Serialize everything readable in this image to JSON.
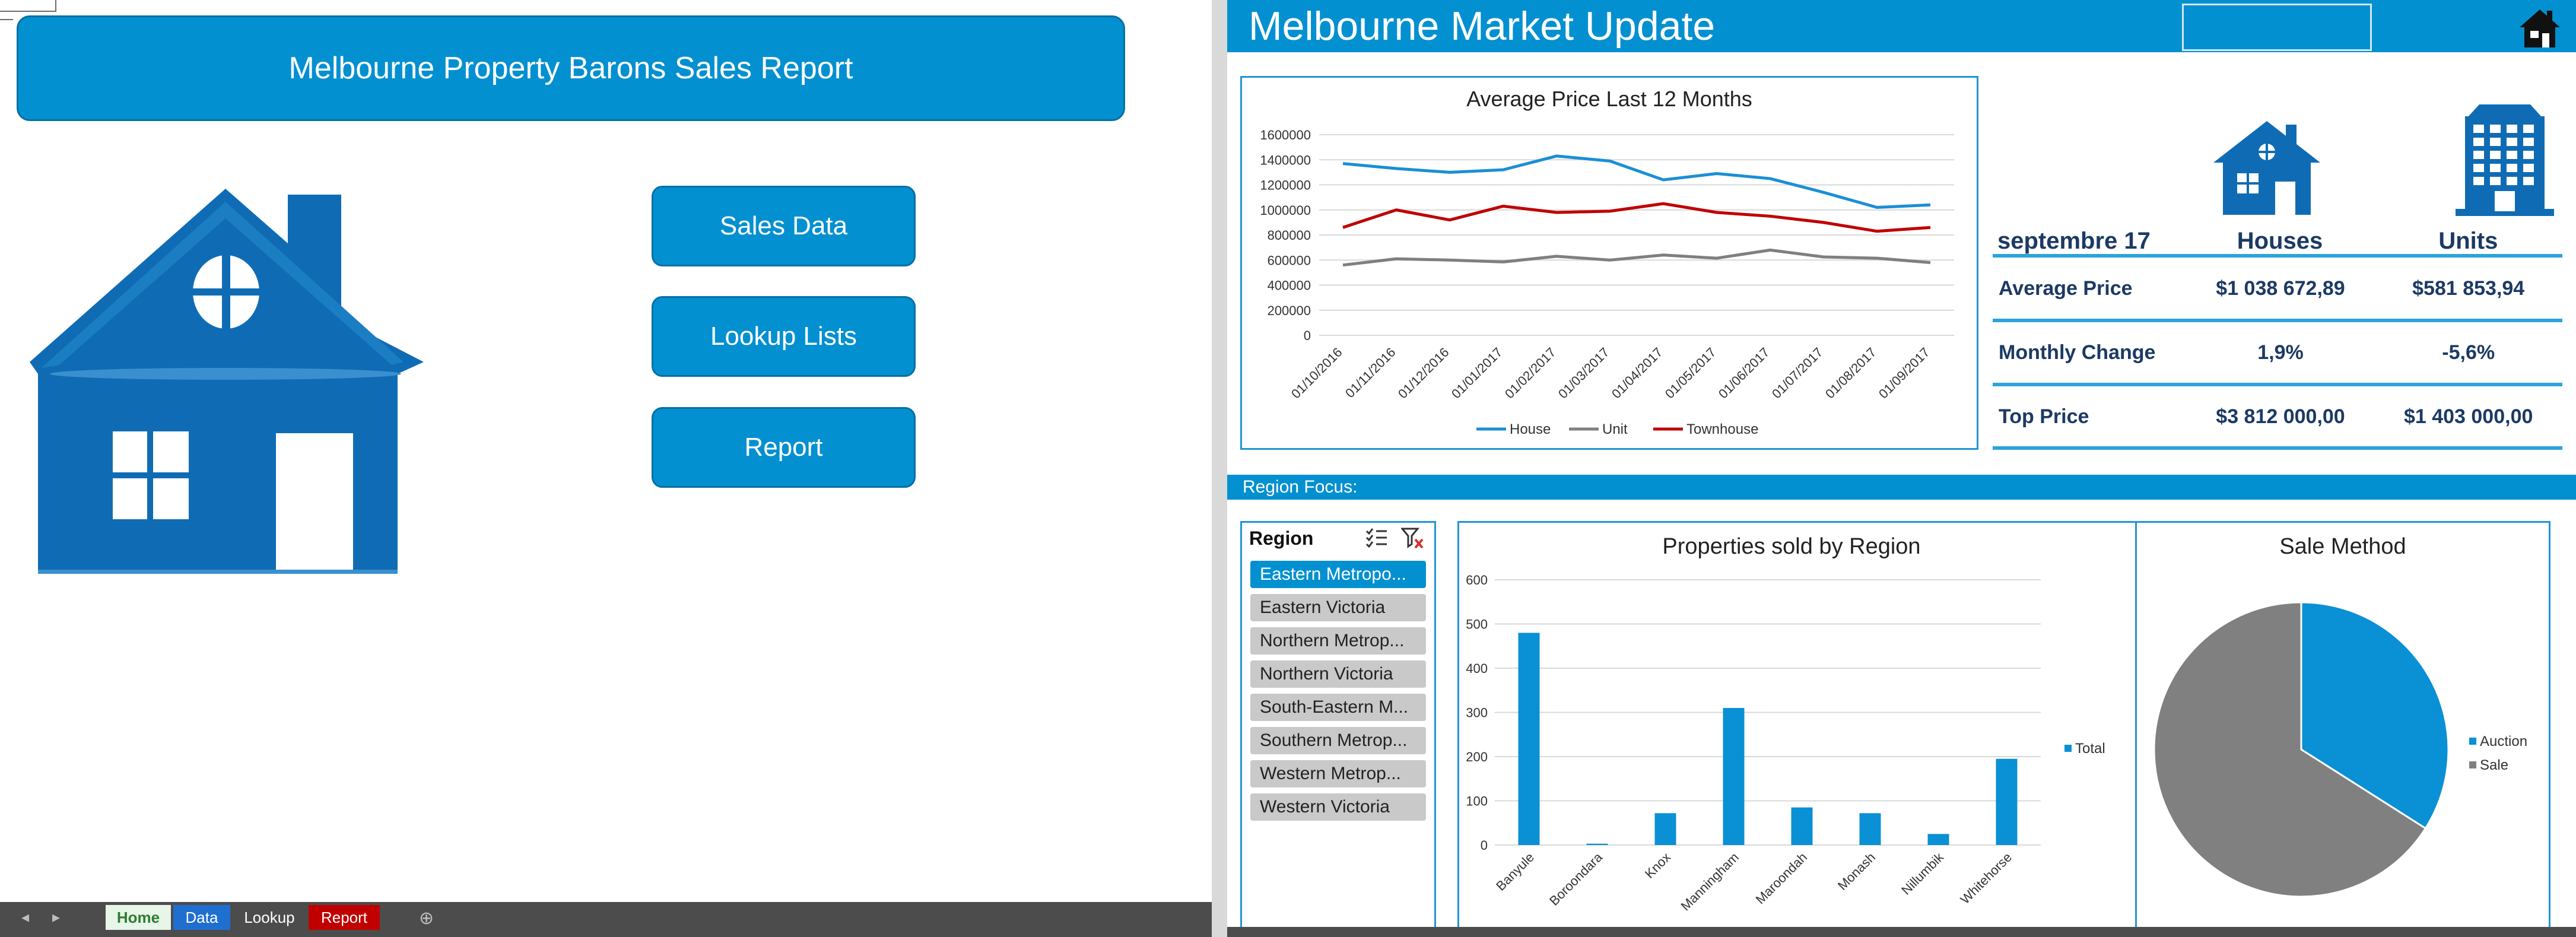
{
  "left": {
    "banner_title": "Melbourne Property Barons Sales Report",
    "buttons": [
      "Sales Data",
      "Lookup Lists",
      "Report"
    ],
    "sheet_tabs": [
      {
        "label": "Home",
        "bg": "#e8f5e9",
        "color": "#2e7d32"
      },
      {
        "label": "Data",
        "bg": "#1f6fd0",
        "color": "#ffffff"
      },
      {
        "label": "Lookup",
        "bg": "#4c4c4c",
        "color": "#ffffff"
      },
      {
        "label": "Report",
        "bg": "#c00000",
        "color": "#ffffff"
      }
    ],
    "icons": {
      "house": "house-illustration",
      "prev": "◂",
      "next": "▸",
      "add": "⊕"
    }
  },
  "right": {
    "title": "Melbourne Market Update",
    "home_icon": "house-icon",
    "stats": {
      "period": "septembre 17",
      "col_houses": "Houses",
      "col_units": "Units",
      "rows": [
        {
          "label": "Average Price",
          "houses": "$1 038 672,89",
          "units": "$581 853,94"
        },
        {
          "label": "Monthly Change",
          "houses": "1,9%",
          "units": "-5,6%"
        },
        {
          "label": "Top Price",
          "houses": "$3 812 000,00",
          "units": "$1 403 000,00"
        }
      ]
    },
    "region_focus_label": "Region Focus:",
    "slicer": {
      "title": "Region",
      "items": [
        {
          "label": "Eastern Metropo...",
          "selected": true
        },
        {
          "label": "Eastern Victoria",
          "selected": false
        },
        {
          "label": "Northern Metrop...",
          "selected": false
        },
        {
          "label": "Northern Victoria",
          "selected": false
        },
        {
          "label": "South-Eastern M...",
          "selected": false
        },
        {
          "label": "Southern Metrop...",
          "selected": false
        },
        {
          "label": "Western Metrop...",
          "selected": false
        },
        {
          "label": "Western Victoria",
          "selected": false
        }
      ]
    }
  },
  "colors": {
    "accent": "#0390d0",
    "house": "#1a73b6",
    "unit": "#7f7f7f",
    "townhouse": "#c00000"
  },
  "chart_data": [
    {
      "type": "line",
      "title": "Average Price Last 12 Months",
      "x": [
        "01/10/2016",
        "01/11/2016",
        "01/12/2016",
        "01/01/2017",
        "01/02/2017",
        "01/03/2017",
        "01/04/2017",
        "01/05/2017",
        "01/06/2017",
        "01/07/2017",
        "01/08/2017",
        "01/09/2017"
      ],
      "yticks": [
        0,
        200000,
        400000,
        600000,
        800000,
        1000000,
        1200000,
        1400000,
        1600000
      ],
      "ylim": [
        0,
        1600000
      ],
      "legend": "bottom",
      "series": [
        {
          "name": "House",
          "color": "#1a8fd6",
          "values": [
            1370000,
            1330000,
            1300000,
            1320000,
            1430000,
            1390000,
            1240000,
            1290000,
            1250000,
            1140000,
            1020000,
            1040000
          ]
        },
        {
          "name": "Unit",
          "color": "#7f7f7f",
          "values": [
            560000,
            610000,
            600000,
            585000,
            630000,
            600000,
            640000,
            615000,
            680000,
            625000,
            615000,
            580000
          ]
        },
        {
          "name": "Townhouse",
          "color": "#c00000",
          "values": [
            860000,
            1000000,
            920000,
            1030000,
            980000,
            990000,
            1050000,
            980000,
            950000,
            900000,
            830000,
            860000
          ]
        }
      ]
    },
    {
      "type": "bar",
      "title": "Properties sold by Region",
      "categories": [
        "Banyule",
        "Boroondara",
        "Knox",
        "Manningham",
        "Maroondah",
        "Monash",
        "Nillumbik",
        "Whitehorse"
      ],
      "series": [
        {
          "name": "Total",
          "color": "#0a90d4",
          "values": [
            480,
            3,
            72,
            310,
            85,
            72,
            25,
            195
          ]
        }
      ],
      "yticks": [
        0,
        100,
        200,
        300,
        400,
        500,
        600
      ],
      "ylim": [
        0,
        600
      ],
      "legend": "right"
    },
    {
      "type": "pie",
      "title": "Sale Method",
      "slices": [
        {
          "name": "Auction",
          "value": 34,
          "color": "#0a90d4"
        },
        {
          "name": "Sale",
          "value": 66,
          "color": "#808080"
        }
      ],
      "legend": "right"
    }
  ]
}
